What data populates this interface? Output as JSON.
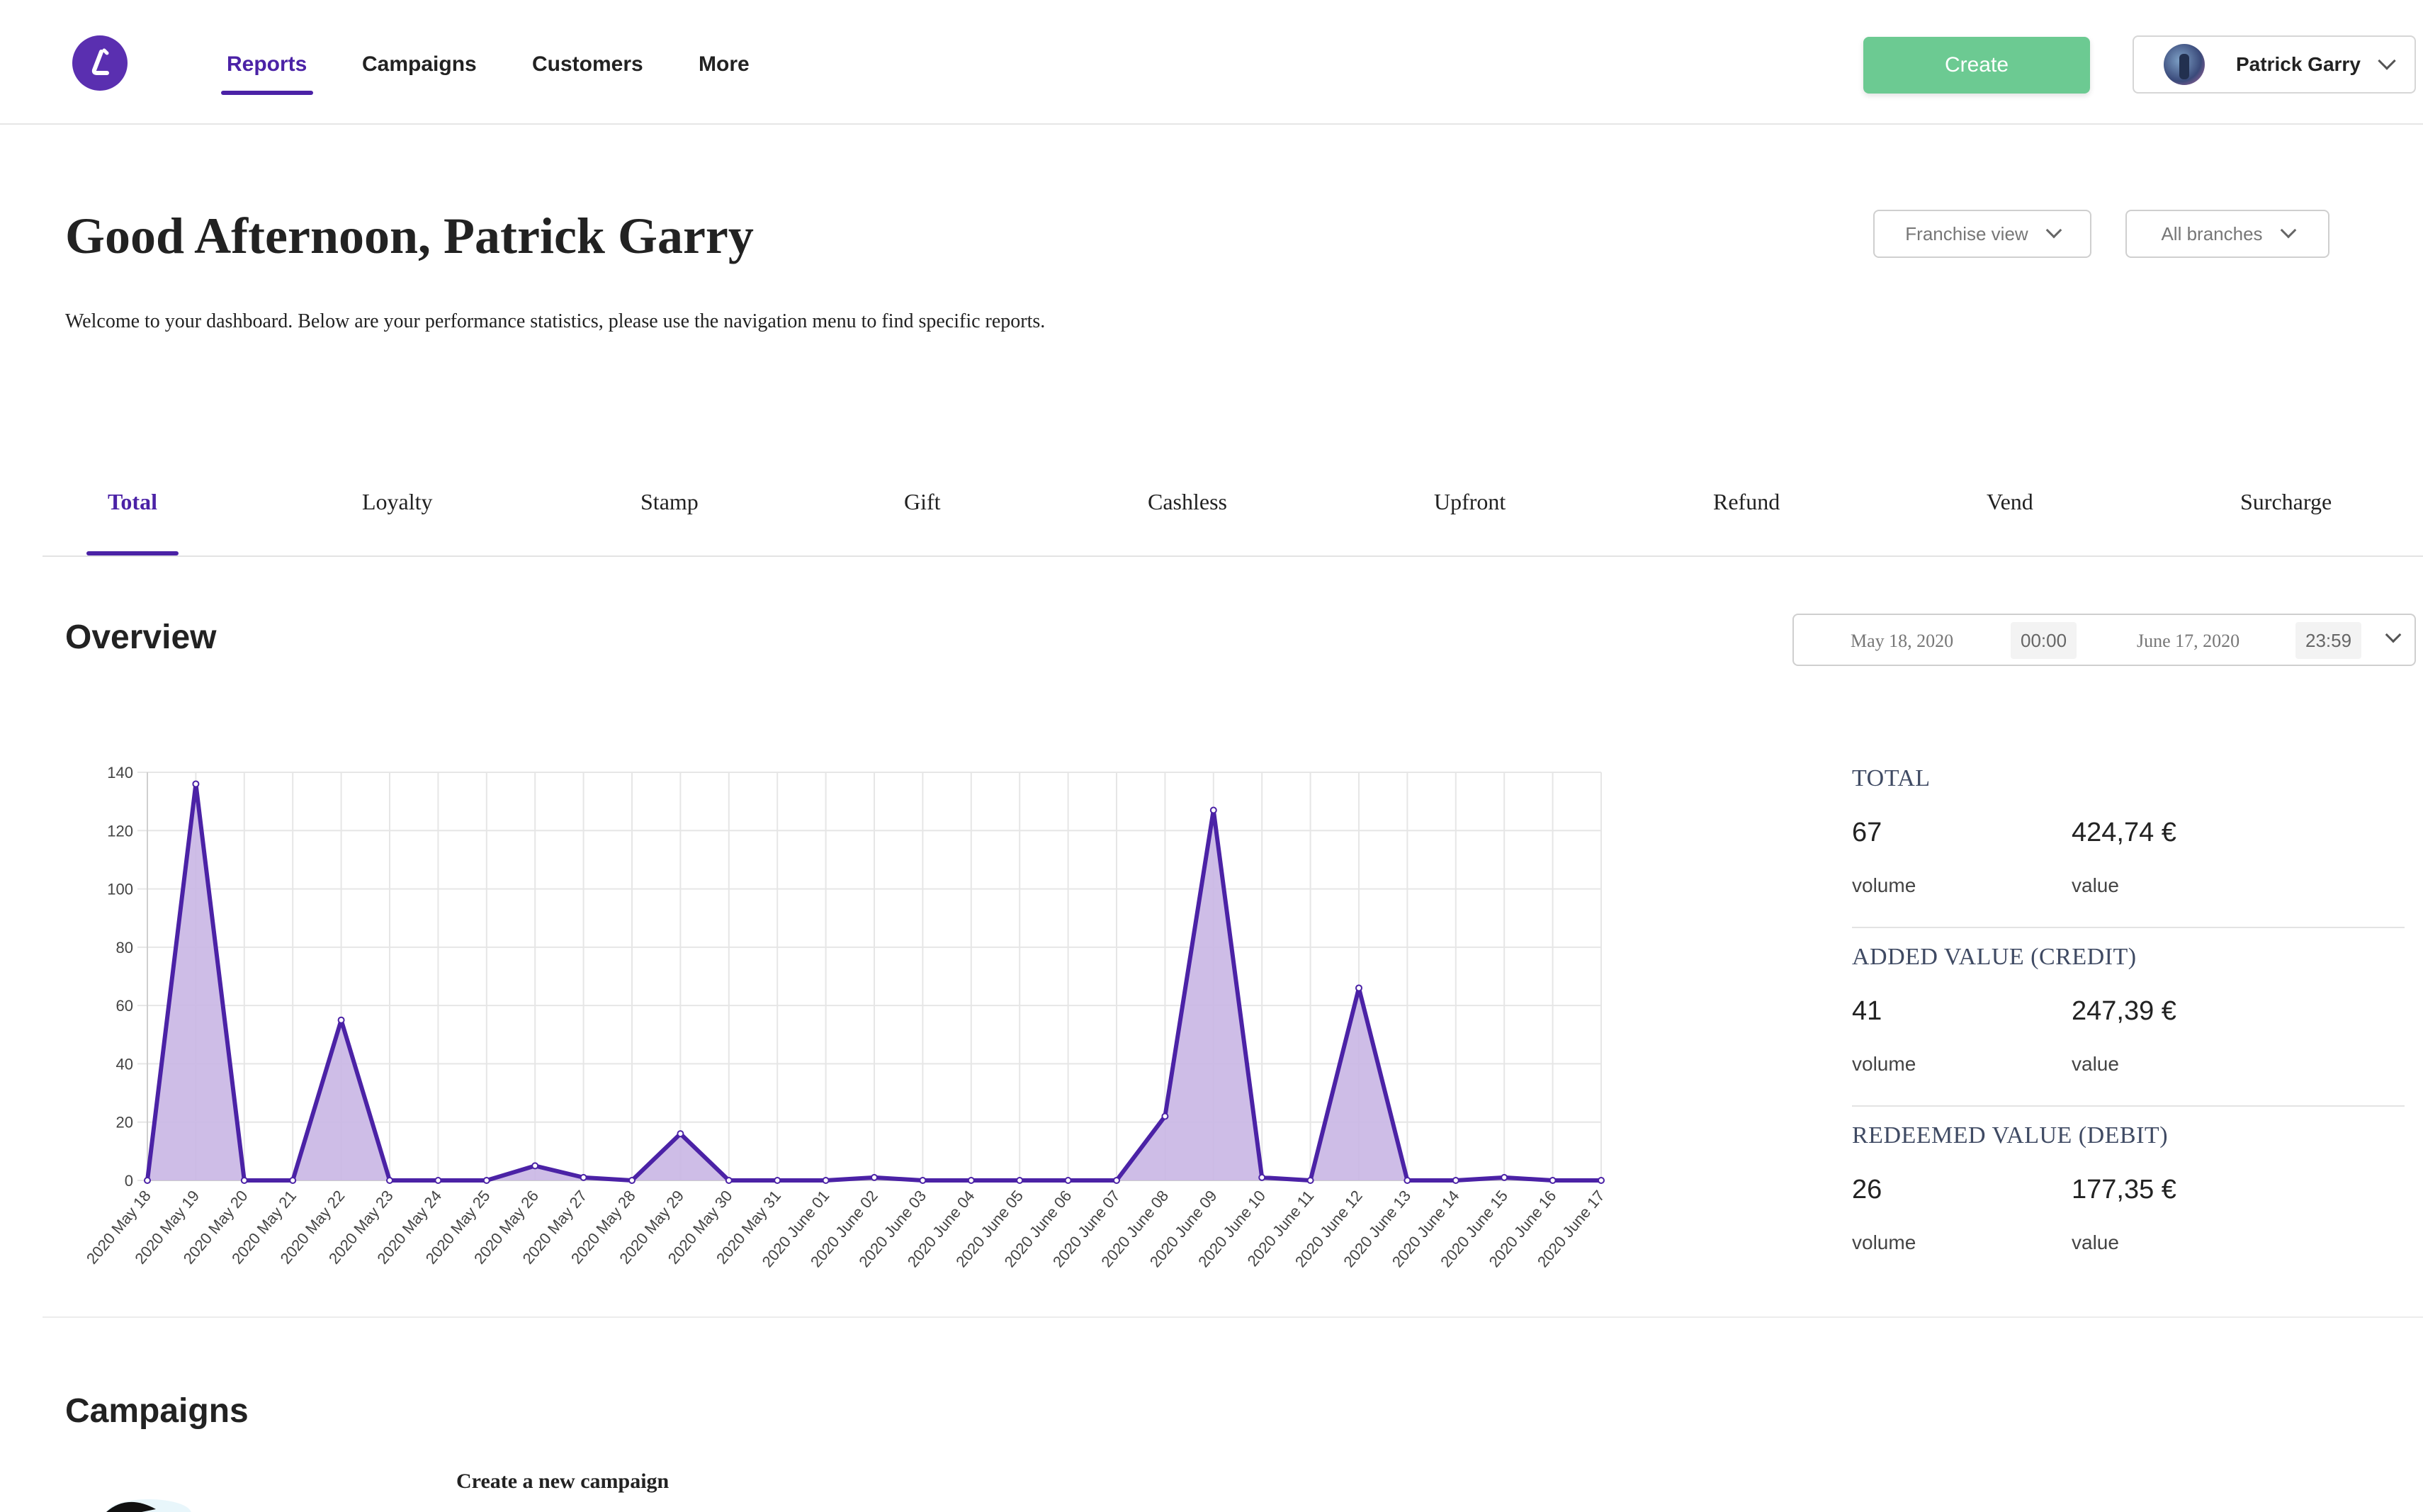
{
  "app": {
    "nav": [
      {
        "label": "Reports",
        "active": true
      },
      {
        "label": "Campaigns"
      },
      {
        "label": "Customers"
      },
      {
        "label": "More"
      }
    ],
    "create_label": "Create",
    "user_name": "Patrick Garry",
    "accent_color": "#4b22a6",
    "create_color": "#6cca92"
  },
  "header": {
    "greeting": "Good Afternoon, Patrick Garry",
    "welcome": "Welcome to your dashboard. Below are your performance statistics, please use the navigation menu to find specific reports.",
    "view_select": "Franchise view",
    "branch_select": "All branches"
  },
  "tabs": [
    "Total",
    "Loyalty",
    "Stamp",
    "Gift",
    "Cashless",
    "Upfront",
    "Refund",
    "Vend",
    "Surcharge"
  ],
  "overview": {
    "title": "Overview",
    "start_date": "May 18, 2020",
    "start_time": "00:00",
    "end_date": "June 17, 2020",
    "end_time": "23:59"
  },
  "chart_data": {
    "type": "area",
    "x": [
      "2020 May 18",
      "2020 May 19",
      "2020 May 20",
      "2020 May 21",
      "2020 May 22",
      "2020 May 23",
      "2020 May 24",
      "2020 May 25",
      "2020 May 26",
      "2020 May 27",
      "2020 May 28",
      "2020 May 29",
      "2020 May 30",
      "2020 May 31",
      "2020 June 01",
      "2020 June 02",
      "2020 June 03",
      "2020 June 04",
      "2020 June 05",
      "2020 June 06",
      "2020 June 07",
      "2020 June 08",
      "2020 June 09",
      "2020 June 10",
      "2020 June 11",
      "2020 June 12",
      "2020 June 13",
      "2020 June 14",
      "2020 June 15",
      "2020 June 16",
      "2020 June 17"
    ],
    "values": [
      0,
      136,
      0,
      0,
      55,
      0,
      0,
      0,
      5,
      1,
      0,
      16,
      0,
      0,
      0,
      1,
      0,
      0,
      0,
      0,
      0,
      22,
      127,
      1,
      0,
      66,
      0,
      0,
      1,
      0,
      0
    ],
    "ylim": [
      0,
      140
    ],
    "yticks": [
      0,
      20,
      40,
      60,
      80,
      100,
      120,
      140
    ],
    "grid": true,
    "line_color": "#4b22a6",
    "fill_color": "#c9b6e4"
  },
  "stats": [
    {
      "title": "TOTAL",
      "volume": "67",
      "value": "424,74 €"
    },
    {
      "title": "ADDED VALUE (CREDIT)",
      "volume": "41",
      "value": "247,39 €"
    },
    {
      "title": "REDEEMED VALUE (DEBIT)",
      "volume": "26",
      "value": "177,35 €"
    }
  ],
  "stat_labels": {
    "volume": "volume",
    "value": "value"
  },
  "campaigns": {
    "title": "Campaigns",
    "create_new": "Create a new campaign"
  }
}
